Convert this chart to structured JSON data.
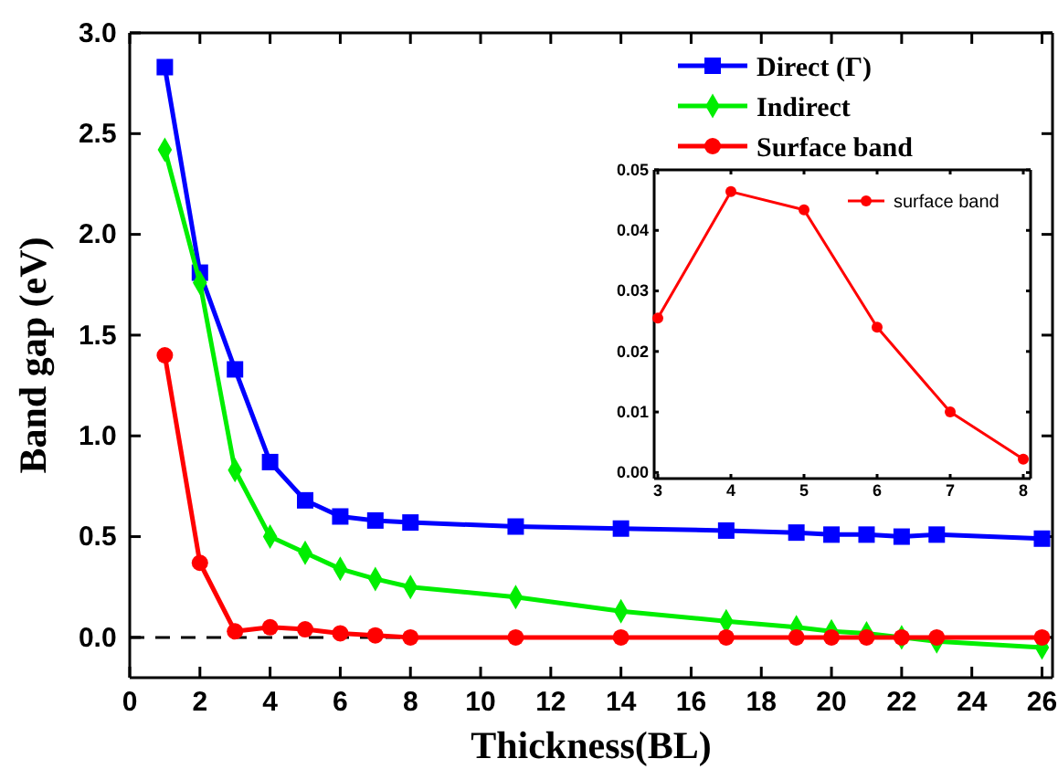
{
  "chart_data": [
    {
      "type": "line",
      "xlabel": "Thickness(BL)",
      "ylabel": "Band gap (eV)",
      "xlim": [
        0,
        26.3
      ],
      "ylim": [
        -0.2,
        3.0
      ],
      "xticks": [
        0,
        2,
        4,
        6,
        8,
        10,
        12,
        14,
        16,
        18,
        20,
        22,
        24,
        26
      ],
      "yticks": [
        {
          "value": 0,
          "label": "0.0"
        },
        {
          "value": 0.5,
          "label": "0.5"
        },
        {
          "value": 1,
          "label": "1.0"
        },
        {
          "value": 1.5,
          "label": "1.5"
        },
        {
          "value": 2,
          "label": "2.0"
        },
        {
          "value": 2.5,
          "label": "2.5"
        },
        {
          "value": 3,
          "label": "3.0"
        }
      ],
      "x": [
        1,
        2,
        3,
        4,
        5,
        6,
        7,
        8,
        11,
        14,
        17,
        19,
        20,
        21,
        22,
        23,
        26
      ],
      "legend": "top right",
      "grid": false,
      "series": [
        {
          "name": "Direct (Γ)",
          "color": "#0000ff",
          "marker": "square",
          "values": [
            2.83,
            1.81,
            1.33,
            0.87,
            0.68,
            0.6,
            0.58,
            0.57,
            0.55,
            0.54,
            0.53,
            0.52,
            0.51,
            0.51,
            0.5,
            0.51,
            0.49
          ]
        },
        {
          "name": "Indirect",
          "color": "#00ee00",
          "marker": "diamond",
          "values": [
            2.42,
            1.76,
            0.83,
            0.5,
            0.42,
            0.34,
            0.29,
            0.25,
            0.2,
            0.13,
            0.08,
            0.05,
            0.03,
            0.02,
            0.0,
            -0.02,
            -0.05
          ]
        },
        {
          "name": "Surface band",
          "color": "#ff0000",
          "marker": "circle",
          "values": [
            1.4,
            0.37,
            0.03,
            0.05,
            0.04,
            0.02,
            0.01,
            0,
            0,
            0,
            0,
            0,
            0,
            0,
            0,
            0,
            0
          ]
        }
      ],
      "ref_lines": [
        {
          "axis": "y",
          "value": 0,
          "color": "#000000",
          "line_style": "dashed"
        }
      ]
    },
    {
      "type": "line",
      "xlim": [
        2.95,
        8.1
      ],
      "ylim": [
        -0.001,
        0.05
      ],
      "xticks": [
        3,
        4,
        5,
        6,
        7,
        8
      ],
      "yticks": [
        {
          "value": 0,
          "label": "0.00"
        },
        {
          "value": 0.01,
          "label": "0.01"
        },
        {
          "value": 0.02,
          "label": "0.02"
        },
        {
          "value": 0.03,
          "label": "0.03"
        },
        {
          "value": 0.04,
          "label": "0.04"
        },
        {
          "value": 0.05,
          "label": "0.05"
        }
      ],
      "x": [
        3,
        4,
        5,
        6,
        7,
        8
      ],
      "legend": "top right",
      "grid": false,
      "series": [
        {
          "name": "surface band",
          "color": "#ff0000",
          "marker": "circle",
          "values": [
            0.0255,
            0.0464,
            0.0434,
            0.024,
            0.01,
            0.0022
          ]
        }
      ]
    }
  ]
}
